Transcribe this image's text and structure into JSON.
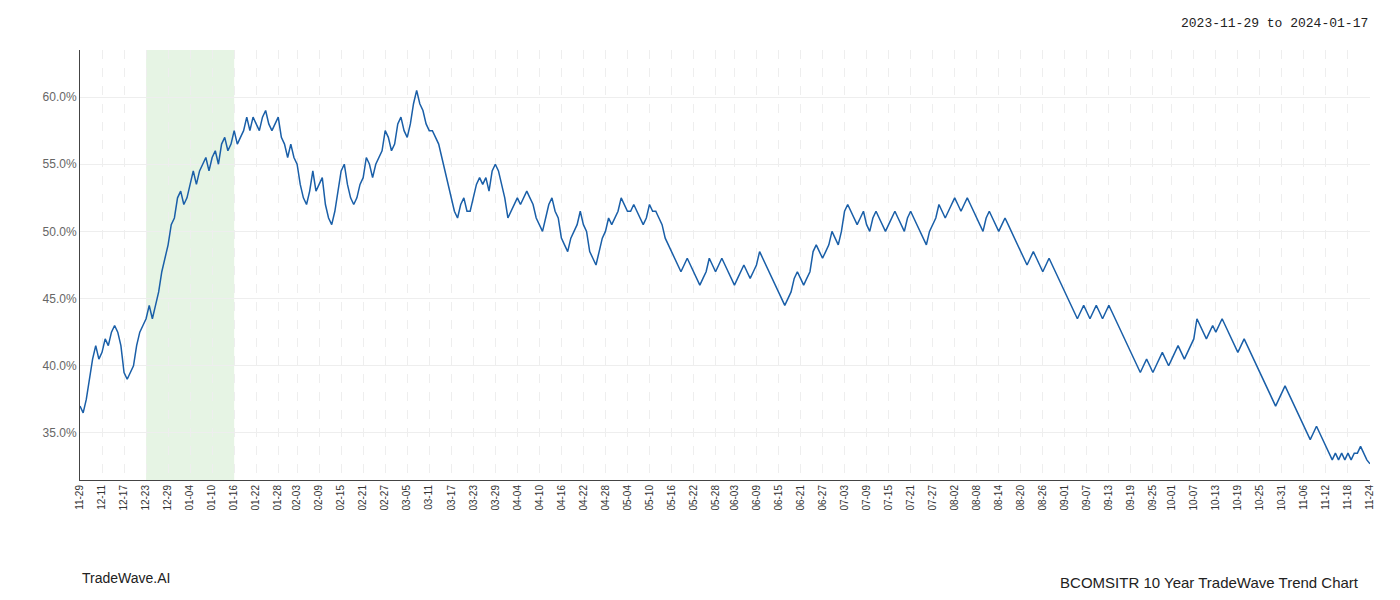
{
  "chart_data": {
    "type": "line",
    "title": "BCOMSITR 10 Year TradeWave Trend Chart",
    "subtitle": "2023-11-29 to 2024-01-17",
    "annotations": [
      "TradeWave.AI"
    ],
    "color": "#1a5fa8",
    "grid": true,
    "highlight": {
      "start": "12-23",
      "end": "01-16",
      "color": "#d6ecd2"
    },
    "ylim": [
      31.5,
      63.5
    ],
    "yticks": [
      {
        "value": 35.0,
        "label": "35.0%"
      },
      {
        "value": 40.0,
        "label": "40.0%"
      },
      {
        "value": 45.0,
        "label": "45.0%"
      },
      {
        "value": 50.0,
        "label": "50.0%"
      },
      {
        "value": 55.0,
        "label": "55.0%"
      },
      {
        "value": 60.0,
        "label": "60.0%"
      }
    ],
    "categories": [
      "11-29",
      null,
      null,
      null,
      null,
      null,
      null,
      "12-11",
      null,
      null,
      null,
      null,
      null,
      null,
      "12-17",
      null,
      null,
      null,
      null,
      null,
      null,
      "12-23",
      null,
      null,
      null,
      null,
      null,
      null,
      "12-29",
      null,
      null,
      null,
      null,
      null,
      null,
      "01-04",
      null,
      null,
      null,
      null,
      null,
      null,
      "01-10",
      null,
      null,
      null,
      null,
      null,
      null,
      "01-16",
      null,
      null,
      null,
      null,
      null,
      null,
      "01-22",
      null,
      null,
      null,
      null,
      null,
      null,
      "01-28",
      null,
      null,
      null,
      null,
      null,
      "02-03",
      null,
      null,
      null,
      null,
      null,
      null,
      "02-09",
      null,
      null,
      null,
      null,
      null,
      null,
      "02-15",
      null,
      null,
      null,
      null,
      null,
      null,
      "02-21",
      null,
      null,
      null,
      null,
      null,
      null,
      "02-27",
      null,
      null,
      null,
      null,
      null,
      null,
      "03-05",
      null,
      null,
      null,
      null,
      null,
      null,
      "03-11",
      null,
      null,
      null,
      null,
      null,
      null,
      "03-17",
      null,
      null,
      null,
      null,
      null,
      null,
      "03-23",
      null,
      null,
      null,
      null,
      null,
      null,
      "03-29",
      null,
      null,
      null,
      null,
      null,
      null,
      "04-04",
      null,
      null,
      null,
      null,
      null,
      null,
      "04-10",
      null,
      null,
      null,
      null,
      null,
      null,
      "04-16",
      null,
      null,
      null,
      null,
      null,
      null,
      "04-22",
      null,
      null,
      null,
      null,
      null,
      null,
      "04-28",
      null,
      null,
      null,
      null,
      null,
      null,
      "05-04",
      null,
      null,
      null,
      null,
      null,
      null,
      "05-10",
      null,
      null,
      null,
      null,
      null,
      null,
      "05-16",
      null,
      null,
      null,
      null,
      null,
      null,
      "05-22",
      null,
      null,
      null,
      null,
      null,
      null,
      "05-28",
      null,
      null,
      null,
      null,
      null,
      "06-03",
      null,
      null,
      null,
      null,
      null,
      null,
      "06-09",
      null,
      null,
      null,
      null,
      null,
      null,
      "06-15",
      null,
      null,
      null,
      null,
      null,
      null,
      "06-21",
      null,
      null,
      null,
      null,
      null,
      null,
      "06-27",
      null,
      null,
      null,
      null,
      null,
      null,
      "07-03",
      null,
      null,
      null,
      null,
      null,
      null,
      "07-09",
      null,
      null,
      null,
      null,
      null,
      null,
      "07-15",
      null,
      null,
      null,
      null,
      null,
      null,
      "07-21",
      null,
      null,
      null,
      null,
      null,
      null,
      "07-27",
      null,
      null,
      null,
      null,
      null,
      null,
      "08-02",
      null,
      null,
      null,
      null,
      null,
      null,
      "08-08",
      null,
      null,
      null,
      null,
      null,
      null,
      "08-14",
      null,
      null,
      null,
      null,
      null,
      null,
      "08-20",
      null,
      null,
      null,
      null,
      null,
      null,
      "08-26",
      null,
      null,
      null,
      null,
      null,
      null,
      "09-01",
      null,
      null,
      null,
      null,
      null,
      null,
      "09-07",
      null,
      null,
      null,
      null,
      null,
      null,
      "09-13",
      null,
      null,
      null,
      null,
      null,
      null,
      "09-19",
      null,
      null,
      null,
      null,
      null,
      null,
      "09-25",
      null,
      null,
      null,
      null,
      null,
      "10-01",
      null,
      null,
      null,
      null,
      null,
      null,
      "10-07",
      null,
      null,
      null,
      null,
      null,
      null,
      "10-13",
      null,
      null,
      null,
      null,
      null,
      null,
      "10-19",
      null,
      null,
      null,
      null,
      null,
      null,
      "10-25",
      null,
      null,
      null,
      null,
      null,
      null,
      "10-31",
      null,
      null,
      null,
      null,
      null,
      null,
      "11-06",
      null,
      null,
      null,
      null,
      null,
      null,
      "11-12",
      null,
      null,
      null,
      null,
      null,
      null,
      "11-18",
      null,
      null,
      null,
      null,
      null,
      null,
      "11-24"
    ],
    "values": [
      37.0,
      36.5,
      37.5,
      39.0,
      40.5,
      41.5,
      40.5,
      41.0,
      42.0,
      41.5,
      42.5,
      43.0,
      42.5,
      41.5,
      39.5,
      39.0,
      39.5,
      40.0,
      41.5,
      42.5,
      43.0,
      43.5,
      44.5,
      43.5,
      44.5,
      45.5,
      47.0,
      48.0,
      49.0,
      50.5,
      51.0,
      52.5,
      53.0,
      52.0,
      52.5,
      53.5,
      54.5,
      53.5,
      54.5,
      55.0,
      55.5,
      54.5,
      55.5,
      56.0,
      55.0,
      56.5,
      57.0,
      56.0,
      56.5,
      57.5,
      56.5,
      57.0,
      57.5,
      58.5,
      57.5,
      58.5,
      58.0,
      57.5,
      58.5,
      59.0,
      58.0,
      57.5,
      58.0,
      58.5,
      57.0,
      56.5,
      55.5,
      56.5,
      55.5,
      55.0,
      53.5,
      52.5,
      52.0,
      53.0,
      54.5,
      53.0,
      53.5,
      54.0,
      52.0,
      51.0,
      50.5,
      51.5,
      53.0,
      54.5,
      55.0,
      53.5,
      52.5,
      52.0,
      52.5,
      53.5,
      54.0,
      55.5,
      55.0,
      54.0,
      55.0,
      55.5,
      56.0,
      57.5,
      57.0,
      56.0,
      56.5,
      58.0,
      58.5,
      57.5,
      57.0,
      58.0,
      59.5,
      60.5,
      59.5,
      59.0,
      58.0,
      57.5,
      57.5,
      57.0,
      56.5,
      55.5,
      54.5,
      53.5,
      52.5,
      51.5,
      51.0,
      52.0,
      52.5,
      51.5,
      51.5,
      52.5,
      53.5,
      54.0,
      53.5,
      54.0,
      53.0,
      54.5,
      55.0,
      54.5,
      53.5,
      52.5,
      51.0,
      51.5,
      52.0,
      52.5,
      52.0,
      52.5,
      53.0,
      52.5,
      52.0,
      51.0,
      50.5,
      50.0,
      51.0,
      52.0,
      52.5,
      51.5,
      51.0,
      49.5,
      49.0,
      48.5,
      49.5,
      50.0,
      50.5,
      51.5,
      50.5,
      50.0,
      48.5,
      48.0,
      47.5,
      48.5,
      49.5,
      50.0,
      51.0,
      50.5,
      51.0,
      51.5,
      52.5,
      52.0,
      51.5,
      51.5,
      52.0,
      51.5,
      51.0,
      50.5,
      51.0,
      52.0,
      51.5,
      51.5,
      51.0,
      50.5,
      49.5,
      49.0,
      48.5,
      48.0,
      47.5,
      47.0,
      47.5,
      48.0,
      47.5,
      47.0,
      46.5,
      46.0,
      46.5,
      47.0,
      48.0,
      47.5,
      47.0,
      47.5,
      48.0,
      47.5,
      47.0,
      46.5,
      46.0,
      46.5,
      47.0,
      47.5,
      47.0,
      46.5,
      47.0,
      47.5,
      48.5,
      48.0,
      47.5,
      47.0,
      46.5,
      46.0,
      45.5,
      45.0,
      44.5,
      45.0,
      45.5,
      46.5,
      47.0,
      46.5,
      46.0,
      46.5,
      47.0,
      48.5,
      49.0,
      48.5,
      48.0,
      48.5,
      49.0,
      50.0,
      49.5,
      49.0,
      50.0,
      51.5,
      52.0,
      51.5,
      51.0,
      50.5,
      51.0,
      51.5,
      50.5,
      50.0,
      51.0,
      51.5,
      51.0,
      50.5,
      50.0,
      50.5,
      51.0,
      51.5,
      51.0,
      50.5,
      50.0,
      51.0,
      51.5,
      51.0,
      50.5,
      50.0,
      49.5,
      49.0,
      50.0,
      50.5,
      51.0,
      52.0,
      51.5,
      51.0,
      51.5,
      52.0,
      52.5,
      52.0,
      51.5,
      52.0,
      52.5,
      52.0,
      51.5,
      51.0,
      50.5,
      50.0,
      51.0,
      51.5,
      51.0,
      50.5,
      50.0,
      50.5,
      51.0,
      50.5,
      50.0,
      49.5,
      49.0,
      48.5,
      48.0,
      47.5,
      48.0,
      48.5,
      48.0,
      47.5,
      47.0,
      47.5,
      48.0,
      47.5,
      47.0,
      46.5,
      46.0,
      45.5,
      45.0,
      44.5,
      44.0,
      43.5,
      44.0,
      44.5,
      44.0,
      43.5,
      44.0,
      44.5,
      44.0,
      43.5,
      44.0,
      44.5,
      44.0,
      43.5,
      43.0,
      42.5,
      42.0,
      41.5,
      41.0,
      40.5,
      40.0,
      39.5,
      40.0,
      40.5,
      40.0,
      39.5,
      40.0,
      40.5,
      41.0,
      40.5,
      40.0,
      40.5,
      41.0,
      41.5,
      41.0,
      40.5,
      41.0,
      41.5,
      42.0,
      43.5,
      43.0,
      42.5,
      42.0,
      42.5,
      43.0,
      42.5,
      43.0,
      43.5,
      43.0,
      42.5,
      42.0,
      41.5,
      41.0,
      41.5,
      42.0,
      41.5,
      41.0,
      40.5,
      40.0,
      39.5,
      39.0,
      38.5,
      38.0,
      37.5,
      37.0,
      37.5,
      38.0,
      38.5,
      38.0,
      37.5,
      37.0,
      36.5,
      36.0,
      35.5,
      35.0,
      34.5,
      35.0,
      35.5,
      35.0,
      34.5,
      34.0,
      33.5,
      33.0,
      33.5,
      33.0,
      33.5,
      33.0,
      33.5,
      33.0,
      33.5,
      33.5,
      34.0,
      33.5,
      33.0,
      32.7
    ]
  }
}
